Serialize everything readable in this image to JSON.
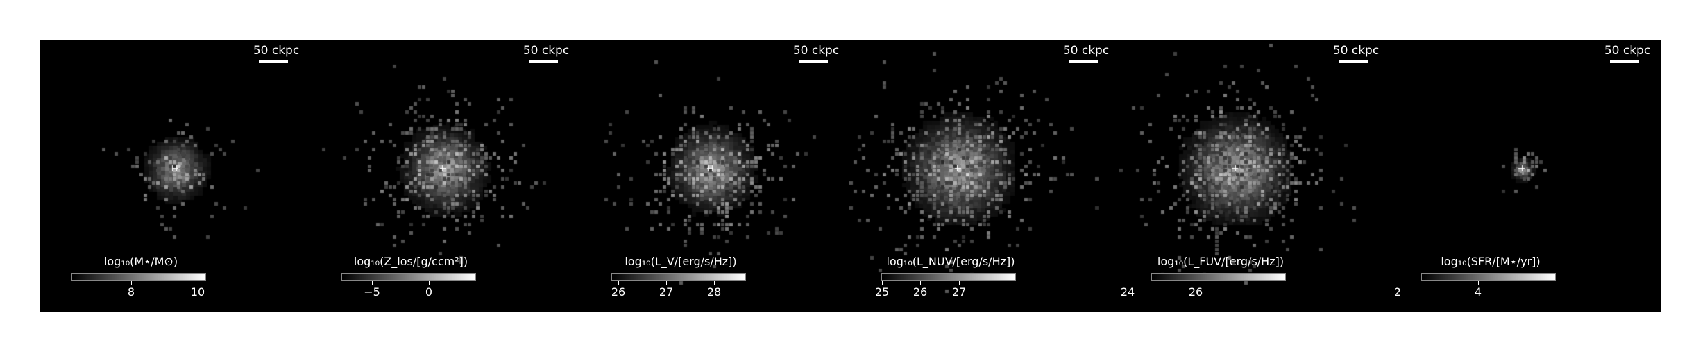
{
  "panels": [
    {
      "scale_label": "50 ckpc",
      "colorbar": {
        "label": "log₁₀(M⋆/M⊙)",
        "ticks": [
          "8",
          "10"
        ]
      },
      "blob": {
        "concentration": "high"
      }
    },
    {
      "scale_label": "50 ckpc",
      "colorbar": {
        "label": "log₁₀(Z_los/[g/ccm²])",
        "ticks": [
          "−5",
          "0"
        ]
      },
      "blob": {
        "concentration": "medium"
      }
    },
    {
      "scale_label": "50 ckpc",
      "colorbar": {
        "label": "log₁₀(L_V/[erg/s/Hz])",
        "ticks": [
          "26",
          "27",
          "28"
        ]
      },
      "blob": {
        "concentration": "medium"
      }
    },
    {
      "scale_label": "50 ckpc",
      "colorbar": {
        "label": "log₁₀(L_NUV/[erg/s/Hz])",
        "ticks": [
          "25",
          "26",
          "27"
        ]
      },
      "blob": {
        "concentration": "diffuse"
      }
    },
    {
      "scale_label": "50 ckpc",
      "colorbar": {
        "label": "log₁₀(L_FUV/[erg/s/Hz])",
        "ticks": [
          "24",
          "26"
        ]
      },
      "blob": {
        "concentration": "diffuse"
      }
    },
    {
      "scale_label": "50 ckpc",
      "colorbar": {
        "label": "log₁₀(SFR/[M⋆/yr])",
        "ticks": [
          "2",
          "4"
        ]
      },
      "blob": {
        "concentration": "compact"
      }
    }
  ],
  "colormap": "grayscale"
}
